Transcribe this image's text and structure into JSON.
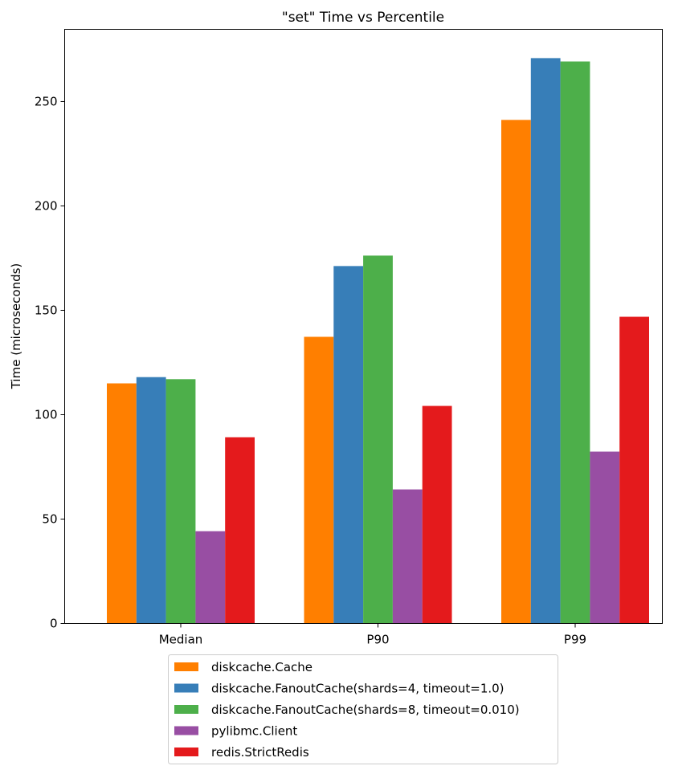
{
  "chart_data": {
    "type": "bar",
    "title": "\"set\" Time vs Percentile",
    "xlabel": "",
    "ylabel": "Time (microseconds)",
    "categories": [
      "Median",
      "P90",
      "P99"
    ],
    "ylim": [
      0,
      284.6
    ],
    "yticks": [
      0,
      50,
      100,
      150,
      200,
      250
    ],
    "grid": false,
    "legend_placement": "bottom-center-outside",
    "series": [
      {
        "name": "diskcache.Cache",
        "color": "#ff7f00",
        "values": [
          115,
          137.3,
          241.2
        ]
      },
      {
        "name": "diskcache.FanoutCache(shards=4, timeout=1.0)",
        "color": "#377eb8",
        "values": [
          118,
          171.2,
          270.8
        ]
      },
      {
        "name": "diskcache.FanoutCache(shards=8, timeout=0.010)",
        "color": "#4daf4a",
        "values": [
          117,
          176.2,
          269.2
        ]
      },
      {
        "name": "pylibmc.Client",
        "color": "#984ea3",
        "values": [
          44.2,
          64.2,
          82.3
        ]
      },
      {
        "name": "redis.StrictRedis",
        "color": "#e41a1c",
        "values": [
          89.2,
          104.2,
          146.9
        ]
      }
    ]
  }
}
